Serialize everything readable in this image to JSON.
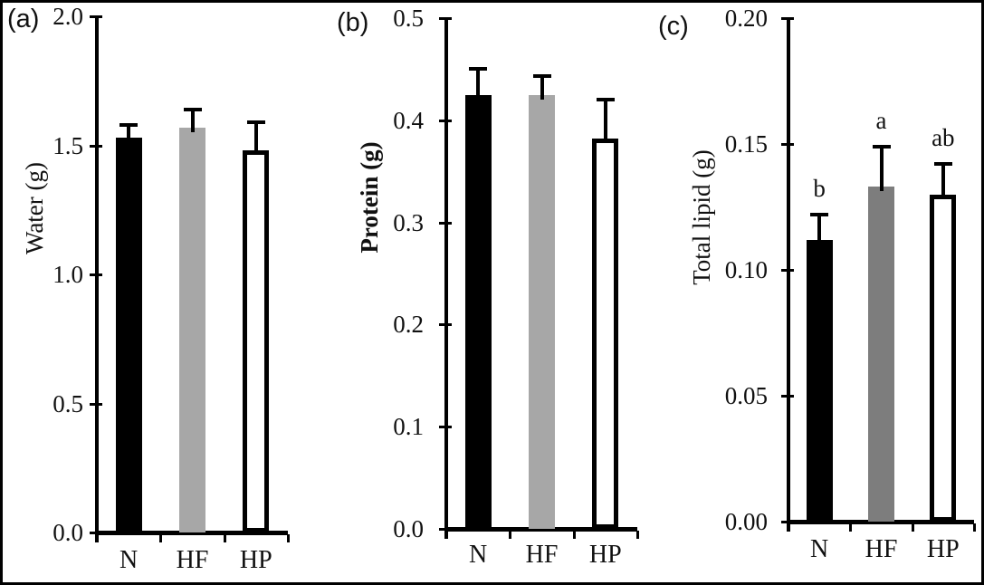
{
  "figure": {
    "background": "#ffffff",
    "border_color": "#000000",
    "description_elements": {
      "error_bar_color": "#000000",
      "axis_color": "#000000"
    }
  },
  "chart_data": [
    {
      "type": "bar",
      "panel_label": "(a)",
      "title": "",
      "xlabel": "",
      "ylabel": "Water (g)",
      "ylabel_bold": false,
      "categories": [
        "N",
        "HF",
        "HP"
      ],
      "values": [
        1.53,
        1.57,
        1.48
      ],
      "errors_plus": [
        0.05,
        0.07,
        0.11
      ],
      "sig_letters": [
        "",
        "",
        ""
      ],
      "bar_fills": [
        "#000000",
        "#a7a7a7",
        "#ffffff"
      ],
      "bar_outlined": [
        false,
        false,
        true
      ],
      "ylim": [
        0.0,
        2.0
      ],
      "ytick_values": [
        2.0,
        1.5,
        1.0,
        0.5,
        0.0
      ],
      "ytick_labels": [
        "2.0",
        "1.5",
        "1.0",
        "0.5",
        "0.0"
      ],
      "grid": false,
      "legend": "none"
    },
    {
      "type": "bar",
      "panel_label": "(b)",
      "title": "",
      "xlabel": "",
      "ylabel": "Protein (g)",
      "ylabel_bold": true,
      "categories": [
        "N",
        "HF",
        "HP"
      ],
      "values": [
        0.425,
        0.425,
        0.382
      ],
      "errors_plus": [
        0.025,
        0.018,
        0.038
      ],
      "sig_letters": [
        "",
        "",
        ""
      ],
      "bar_fills": [
        "#000000",
        "#a7a7a7",
        "#ffffff"
      ],
      "bar_outlined": [
        false,
        false,
        true
      ],
      "ylim": [
        0.0,
        0.5
      ],
      "ytick_values": [
        0.5,
        0.4,
        0.3,
        0.2,
        0.1,
        0.0
      ],
      "ytick_labels": [
        "0.5",
        "0.4",
        "0.3",
        "0.2",
        "0.1",
        "0.0"
      ],
      "grid": false,
      "legend": "none"
    },
    {
      "type": "bar",
      "panel_label": "(c)",
      "title": "",
      "xlabel": "",
      "ylabel": "Total lipid (g)",
      "ylabel_bold": false,
      "categories": [
        "N",
        "HF",
        "HP"
      ],
      "values": [
        0.112,
        0.133,
        0.13
      ],
      "errors_plus": [
        0.01,
        0.016,
        0.012
      ],
      "sig_letters": [
        "b",
        "a",
        "ab"
      ],
      "bar_fills": [
        "#000000",
        "#7d7d7d",
        "#ffffff"
      ],
      "bar_outlined": [
        false,
        false,
        true
      ],
      "ylim": [
        0.0,
        0.2
      ],
      "ytick_values": [
        0.2,
        0.15,
        0.1,
        0.05,
        0.0
      ],
      "ytick_labels": [
        "0.20",
        "0.15",
        "0.10",
        "0.05",
        "0.00"
      ],
      "grid": false,
      "legend": "none"
    }
  ]
}
